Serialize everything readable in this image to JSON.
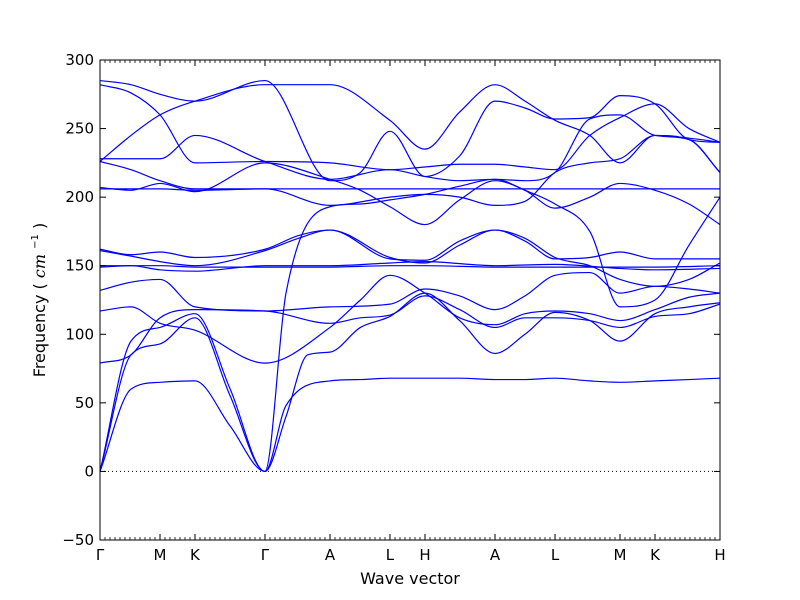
{
  "chart_data": {
    "type": "line",
    "title": "",
    "xlabel": "Wave vector",
    "ylabel": "Frequency",
    "ylabel_unit": "cm",
    "ylabel_unit_exp": "−1",
    "ylim": [
      -50,
      300
    ],
    "yticks": [
      -50,
      0,
      50,
      100,
      150,
      200,
      250,
      300
    ],
    "ytick_labels": [
      "−50",
      "0",
      "50",
      "100",
      "150",
      "200",
      "250",
      "300"
    ],
    "xlim": [
      0,
      1
    ],
    "kpoints": [
      {
        "label": "Γ",
        "x": 0.0
      },
      {
        "label": "M",
        "x": 0.0968
      },
      {
        "label": "K",
        "x": 0.1532
      },
      {
        "label": "Γ",
        "x": 0.2661
      },
      {
        "label": "A",
        "x": 0.371
      },
      {
        "label": "L",
        "x": 0.4677
      },
      {
        "label": "H",
        "x": 0.5242
      },
      {
        "label": "A",
        "x": 0.6371
      },
      {
        "label": "L",
        "x": 0.7339
      },
      {
        "label": "M",
        "x": 0.8387
      },
      {
        "label": "K",
        "x": 0.8952
      },
      {
        "label": "H",
        "x": 1.0
      }
    ],
    "zero_line": {
      "y": 0,
      "style": "dotted"
    },
    "line_color": "#0000ff",
    "series": [
      {
        "x": [
          0.0,
          0.05,
          0.0968,
          0.1532,
          0.21,
          0.2661,
          0.3,
          0.371,
          0.42,
          0.4677,
          0.5242,
          0.58,
          0.6371,
          0.6855,
          0.7339,
          0.79,
          0.8387,
          0.8952,
          0.95,
          1.0
        ],
        "values": [
          0,
          60,
          65,
          66,
          33,
          0,
          48,
          66,
          67,
          68,
          68,
          68,
          67,
          67,
          68,
          66,
          65,
          66,
          67,
          68
        ]
      },
      {
        "x": [
          0.0,
          0.05,
          0.0968,
          0.1532,
          0.21,
          0.2661,
          0.3,
          0.335,
          0.371,
          0.42,
          0.4677,
          0.5242,
          0.58,
          0.6371,
          0.6855,
          0.7339,
          0.79,
          0.8387,
          0.8952,
          0.95,
          1.0
        ],
        "values": [
          0,
          85,
          93,
          112,
          55,
          0,
          40,
          85,
          87,
          105,
          113,
          130,
          110,
          86,
          100,
          116,
          110,
          95,
          115,
          120,
          123
        ]
      },
      {
        "x": [
          0.0,
          0.05,
          0.0968,
          0.1532,
          0.21,
          0.2661,
          0.3,
          0.371,
          0.42,
          0.4677,
          0.5242,
          0.58,
          0.6371,
          0.6855,
          0.7339,
          0.79,
          0.8387,
          0.8952,
          0.95,
          1.0
        ],
        "values": [
          0,
          95,
          105,
          115,
          60,
          0,
          130,
          193,
          195,
          198,
          202,
          208,
          213,
          205,
          195,
          175,
          120,
          125,
          165,
          200
        ]
      },
      {
        "x": [
          0.0,
          0.05,
          0.0968,
          0.1532,
          0.2661,
          0.371,
          0.42,
          0.4677,
          0.5242,
          0.58,
          0.6371,
          0.6855,
          0.7339,
          0.79,
          0.8387,
          0.8952,
          0.95,
          1.0
        ],
        "values": [
          79,
          85,
          112,
          118,
          117,
          108,
          112,
          114,
          128,
          118,
          105,
          112,
          112,
          110,
          105,
          113,
          115,
          122
        ]
      },
      {
        "x": [
          0.0,
          0.05,
          0.0968,
          0.1532,
          0.2661,
          0.371,
          0.42,
          0.4677,
          0.5242,
          0.58,
          0.6371,
          0.6855,
          0.7339,
          0.79,
          0.8387,
          0.8952,
          0.95,
          1.0
        ],
        "values": [
          117,
          120,
          108,
          103,
          79,
          105,
          125,
          143,
          130,
          112,
          107,
          115,
          117,
          115,
          110,
          118,
          127,
          130
        ]
      },
      {
        "x": [
          0.0,
          0.05,
          0.0968,
          0.1532,
          0.2661,
          0.371,
          0.4677,
          0.5242,
          0.58,
          0.6371,
          0.6855,
          0.7339,
          0.79,
          0.8387,
          0.8952,
          0.95,
          1.0
        ],
        "values": [
          132,
          138,
          140,
          120,
          117,
          120,
          122,
          133,
          128,
          118,
          128,
          143,
          145,
          130,
          135,
          133,
          130
        ]
      },
      {
        "x": [
          0.0,
          0.05,
          0.0968,
          0.1532,
          0.2661,
          0.371,
          0.4677,
          0.5242,
          0.6371,
          0.7339,
          0.8387,
          0.8952,
          1.0
        ],
        "values": [
          149,
          150,
          150,
          149,
          149,
          149,
          150,
          150,
          149,
          149,
          149,
          149,
          150
        ]
      },
      {
        "x": [
          0.0,
          0.05,
          0.0968,
          0.1532,
          0.2661,
          0.371,
          0.4677,
          0.5242,
          0.6371,
          0.7339,
          0.8387,
          0.8952,
          1.0
        ],
        "values": [
          150,
          150,
          147,
          146,
          150,
          150,
          152,
          153,
          150,
          151,
          148,
          147,
          148
        ]
      },
      {
        "x": [
          0.0,
          0.05,
          0.0968,
          0.1532,
          0.2661,
          0.32,
          0.371,
          0.4677,
          0.5242,
          0.58,
          0.6371,
          0.6855,
          0.7339,
          0.79,
          0.8387,
          0.8952,
          0.95,
          1.0
        ],
        "values": [
          161,
          157,
          153,
          150,
          161,
          170,
          176,
          156,
          152,
          165,
          176,
          170,
          156,
          150,
          140,
          135,
          140,
          152
        ]
      },
      {
        "x": [
          0.0,
          0.05,
          0.0968,
          0.1532,
          0.2661,
          0.32,
          0.371,
          0.4677,
          0.5242,
          0.58,
          0.6371,
          0.6855,
          0.7339,
          0.79,
          0.8387,
          0.8952,
          0.95,
          1.0
        ],
        "values": [
          162,
          158,
          160,
          156,
          162,
          172,
          176,
          155,
          154,
          168,
          176,
          168,
          155,
          156,
          160,
          155,
          155,
          155
        ]
      },
      {
        "x": [
          0.0,
          0.05,
          0.0968,
          0.1532,
          0.2661,
          0.371,
          0.4677,
          0.5242,
          0.6371,
          0.7339,
          0.8387,
          0.8952,
          1.0
        ],
        "values": [
          206,
          206,
          206,
          205,
          206,
          206,
          206,
          206,
          206,
          206,
          206,
          206,
          206
        ]
      },
      {
        "x": [
          0.0,
          0.05,
          0.0968,
          0.1532,
          0.2661,
          0.371,
          0.42,
          0.4677,
          0.5242,
          0.58,
          0.6371,
          0.6855,
          0.7339,
          0.79,
          0.8387,
          0.8952,
          0.95,
          1.0
        ],
        "values": [
          207,
          205,
          210,
          204,
          225,
          213,
          205,
          193,
          180,
          198,
          212,
          205,
          192,
          200,
          210,
          205,
          195,
          180
        ]
      },
      {
        "x": [
          0.0,
          0.05,
          0.0968,
          0.1532,
          0.2661,
          0.371,
          0.4677,
          0.5242,
          0.58,
          0.6371,
          0.6855,
          0.7339,
          0.79,
          0.8387,
          0.8952,
          0.95,
          1.0
        ],
        "values": [
          226,
          220,
          212,
          206,
          206,
          194,
          200,
          202,
          200,
          194,
          197,
          218,
          225,
          228,
          245,
          242,
          218
        ]
      },
      {
        "x": [
          0.0,
          0.05,
          0.0968,
          0.1532,
          0.2661,
          0.371,
          0.4677,
          0.5242,
          0.58,
          0.6371,
          0.6855,
          0.7339,
          0.79,
          0.8387,
          0.8952,
          0.95,
          1.0
        ],
        "values": [
          228,
          228,
          228,
          245,
          226,
          213,
          220,
          215,
          212,
          213,
          212,
          218,
          257,
          260,
          245,
          242,
          218
        ]
      },
      {
        "x": [
          0.0,
          0.05,
          0.0968,
          0.1532,
          0.2661,
          0.371,
          0.4677,
          0.5242,
          0.58,
          0.6371,
          0.6855,
          0.7339,
          0.79,
          0.8387,
          0.8952,
          0.95,
          1.0
        ],
        "values": [
          282,
          276,
          260,
          225,
          226,
          225,
          220,
          222,
          224,
          224,
          222,
          220,
          245,
          258,
          268,
          250,
          240
        ]
      },
      {
        "x": [
          0.0,
          0.05,
          0.0968,
          0.1532,
          0.2661,
          0.371,
          0.42,
          0.4677,
          0.5242,
          0.58,
          0.6371,
          0.6855,
          0.7339,
          0.79,
          0.8387,
          0.8952,
          0.95,
          1.0
        ],
        "values": [
          285,
          282,
          275,
          270,
          285,
          212,
          218,
          248,
          215,
          230,
          270,
          265,
          257,
          258,
          274,
          268,
          242,
          240
        ]
      },
      {
        "x": [
          0.0,
          0.05,
          0.0968,
          0.1532,
          0.2661,
          0.371,
          0.4677,
          0.5242,
          0.58,
          0.6371,
          0.6855,
          0.7339,
          0.79,
          0.8387,
          0.8952,
          0.95,
          1.0
        ],
        "values": [
          226,
          245,
          260,
          270,
          282,
          282,
          256,
          235,
          262,
          282,
          270,
          256,
          245,
          225,
          245,
          243,
          240
        ]
      }
    ]
  }
}
